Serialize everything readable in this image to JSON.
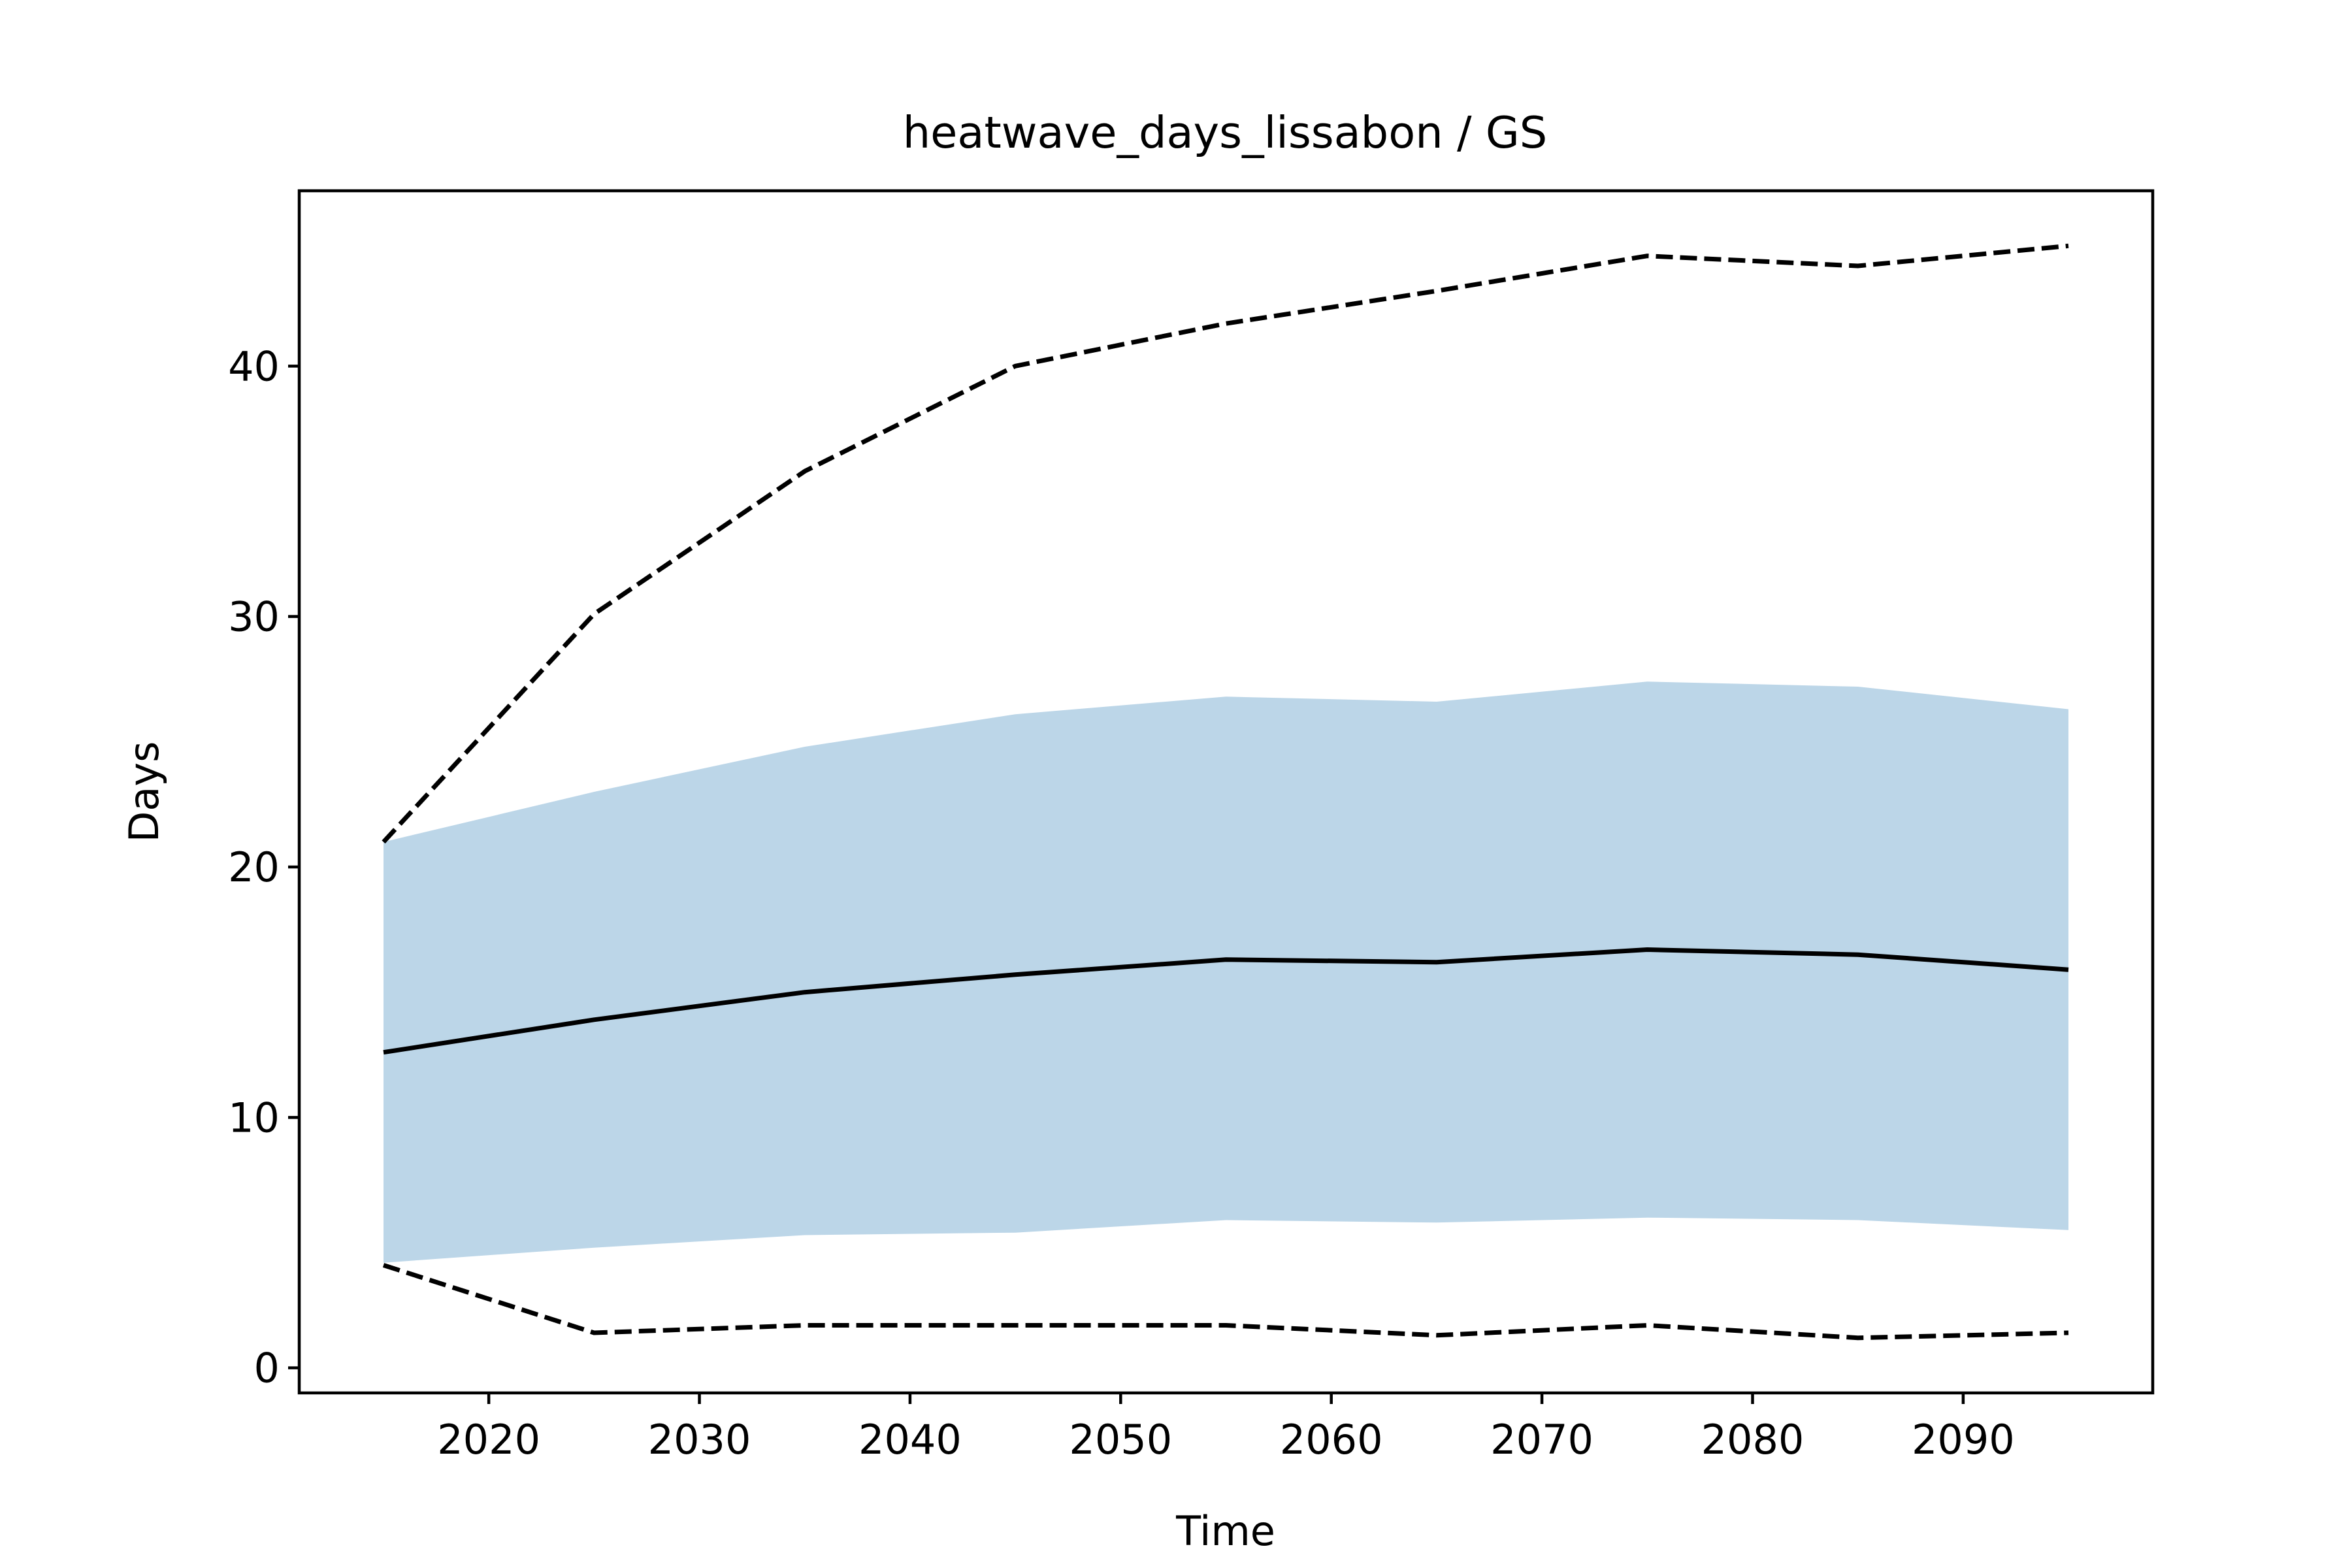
{
  "chart_data": {
    "type": "area",
    "title": "heatwave_days_lissabon / GS",
    "xlabel": "Time",
    "ylabel": "Days",
    "xlim": [
      2011,
      2099
    ],
    "ylim": [
      -1,
      47
    ],
    "xticks": [
      2020,
      2030,
      2040,
      2050,
      2060,
      2070,
      2080,
      2090
    ],
    "yticks": [
      0,
      10,
      20,
      30,
      40
    ],
    "grid": false,
    "legend": "none",
    "x": [
      2015,
      2025,
      2035,
      2045,
      2055,
      2065,
      2075,
      2085,
      2095
    ],
    "band_color": "#bcd6e8",
    "series": [
      {
        "role": "median",
        "style": "solid",
        "color": "#000000",
        "values": [
          12.6,
          13.9,
          15.0,
          15.7,
          16.3,
          16.2,
          16.7,
          16.5,
          15.9
        ]
      },
      {
        "role": "max",
        "style": "dashed",
        "color": "#000000",
        "values": [
          21.0,
          30.1,
          35.8,
          40.0,
          41.7,
          43.0,
          44.4,
          44.0,
          44.8
        ]
      },
      {
        "role": "min",
        "style": "dashed",
        "color": "#000000",
        "values": [
          4.1,
          1.4,
          1.7,
          1.7,
          1.7,
          1.3,
          1.7,
          1.2,
          1.4
        ]
      },
      {
        "role": "band_upper",
        "values": [
          21.0,
          23.0,
          24.8,
          26.1,
          26.8,
          26.6,
          27.4,
          27.2,
          26.3
        ]
      },
      {
        "role": "band_lower",
        "values": [
          4.2,
          4.8,
          5.3,
          5.4,
          5.9,
          5.8,
          6.0,
          5.9,
          5.5
        ]
      }
    ]
  }
}
